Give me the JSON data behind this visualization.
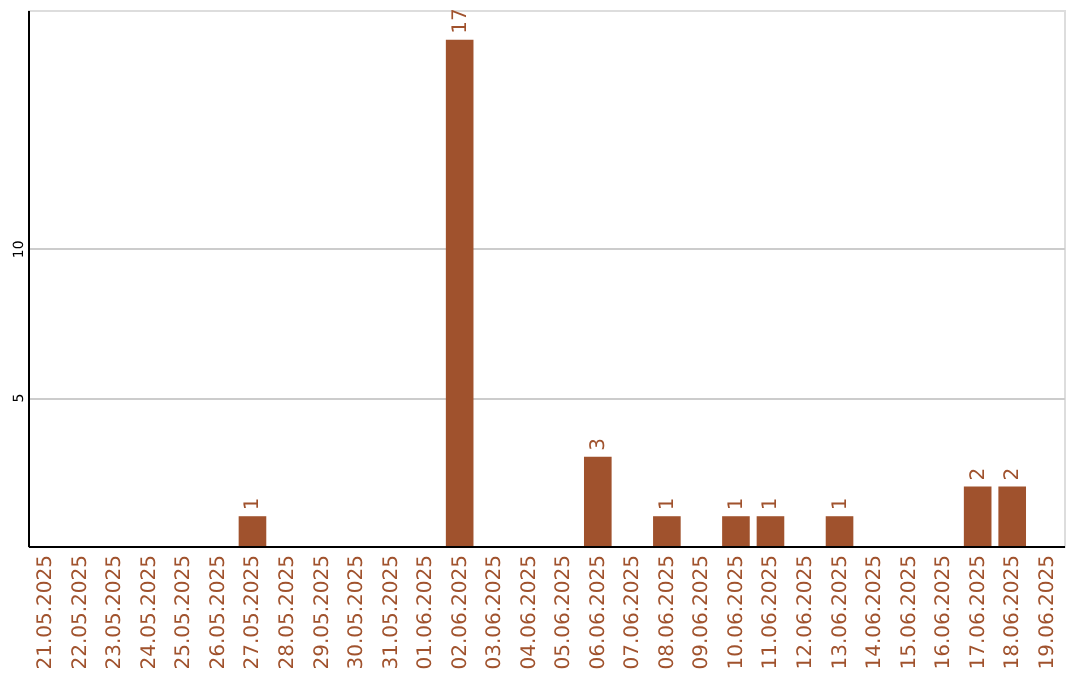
{
  "chart_data": {
    "type": "bar",
    "categories": [
      "21.05.2025",
      "22.05.2025",
      "23.05.2025",
      "24.05.2025",
      "25.05.2025",
      "26.05.2025",
      "27.05.2025",
      "28.05.2025",
      "29.05.2025",
      "30.05.2025",
      "31.05.2025",
      "01.06.2025",
      "02.06.2025",
      "03.06.2025",
      "04.06.2025",
      "05.06.2025",
      "06.06.2025",
      "07.06.2025",
      "08.06.2025",
      "09.06.2025",
      "10.06.2025",
      "11.06.2025",
      "12.06.2025",
      "13.06.2025",
      "14.06.2025",
      "15.06.2025",
      "16.06.2025",
      "17.06.2025",
      "18.06.2025",
      "19.06.2025"
    ],
    "values": [
      0,
      0,
      0,
      0,
      0,
      0,
      1,
      0,
      0,
      0,
      0,
      0,
      17,
      0,
      0,
      0,
      3,
      0,
      1,
      0,
      1,
      1,
      0,
      1,
      0,
      0,
      0,
      2,
      2,
      0
    ],
    "value_labels": [
      null,
      null,
      null,
      null,
      null,
      null,
      "1",
      null,
      null,
      null,
      null,
      null,
      "17",
      null,
      null,
      null,
      "3",
      null,
      "1",
      null,
      "1",
      "1",
      null,
      "1",
      null,
      null,
      null,
      "2",
      "2",
      null
    ],
    "color": "#a0522d",
    "ylim": [
      0,
      18
    ],
    "yticks": [
      5,
      10
    ],
    "grid": "y"
  }
}
